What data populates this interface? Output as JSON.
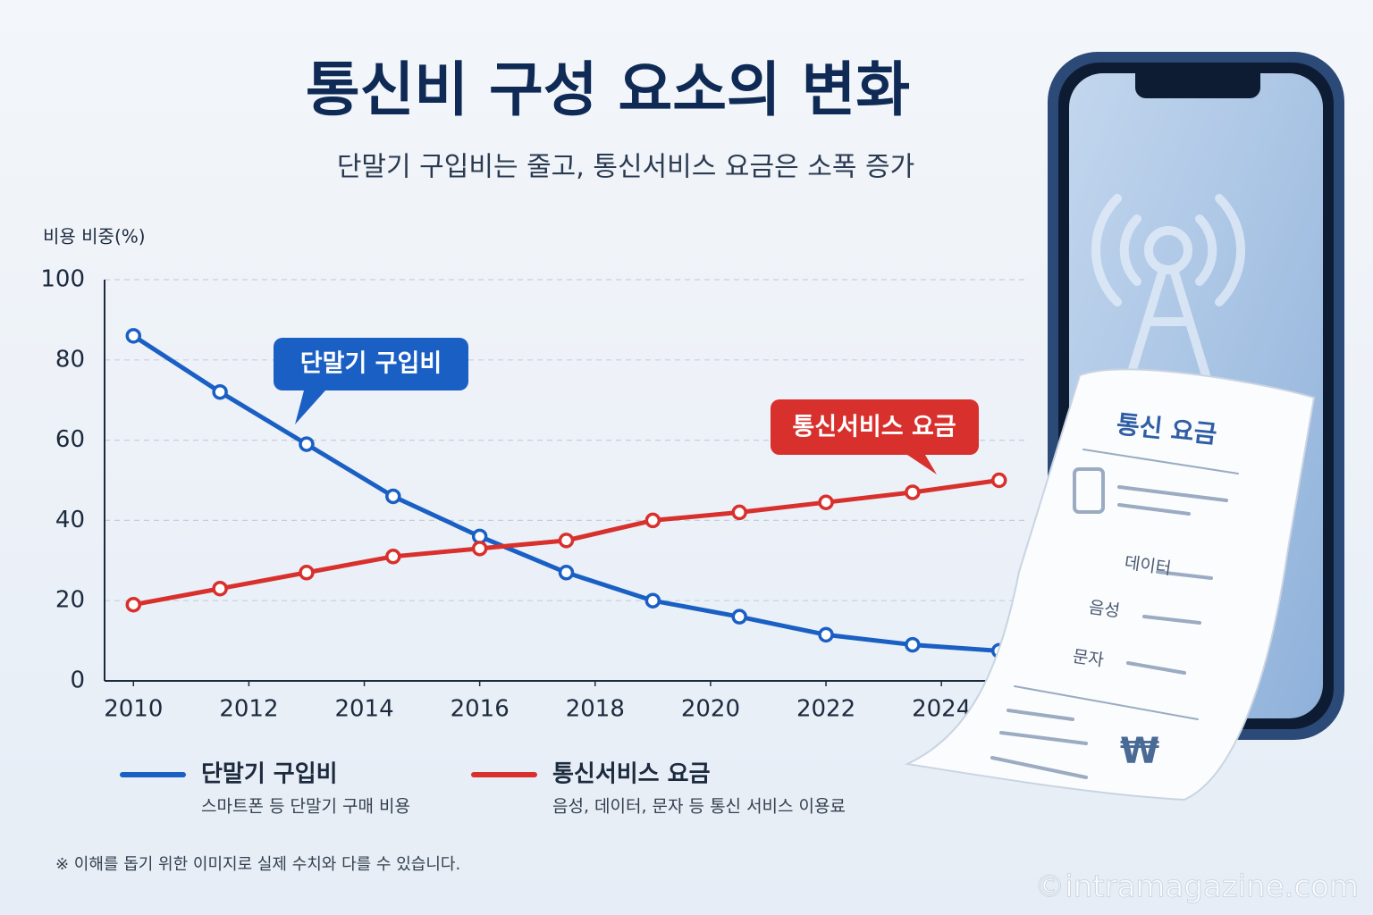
{
  "chart_data": {
    "type": "line",
    "title": "통신비 구성 요소의 변화",
    "subtitle": "단말기 구입비는 줄고, 통신서비스 요금은 소폭 증가",
    "y_label": "비용 비중(%)",
    "x": [
      2010,
      2011.5,
      2013,
      2014.5,
      2016,
      2017.5,
      2019,
      2020.5,
      2022,
      2023.5,
      2025
    ],
    "xlim": [
      2009.5,
      2025.5
    ],
    "xticks": [
      2010,
      2012,
      2014,
      2016,
      2018,
      2020,
      2022,
      2024
    ],
    "ylim": [
      0,
      100
    ],
    "yticks": [
      0,
      20,
      40,
      60,
      80,
      100
    ],
    "grid": true,
    "series": [
      {
        "name": "단말기 구입비",
        "description": "스마트폰 등 단말기 구매 비용",
        "color": "#1a5fc4",
        "values": [
          86,
          72,
          59,
          46,
          36,
          27,
          20,
          16,
          11.5,
          9,
          7.5
        ]
      },
      {
        "name": "통신서비스 요금",
        "description": "음성, 데이터, 문자 등 통신 서비스 이용료",
        "color": "#d8302c",
        "values": [
          19,
          23,
          27,
          31,
          33,
          35,
          40,
          42,
          44.5,
          47,
          50
        ]
      }
    ],
    "annotations": [
      {
        "text": "단말기 구입비"
      },
      {
        "text": "통신서비스 요금"
      }
    ],
    "note": "※ 이해를 돕기 위한 이미지로 실제 수치와 다를 수 있습니다."
  },
  "receipt": {
    "title": "통신 요금",
    "items": [
      "데이터",
      "음성",
      "문자"
    ],
    "currency": "₩"
  },
  "watermark": "©intramagazine.com"
}
